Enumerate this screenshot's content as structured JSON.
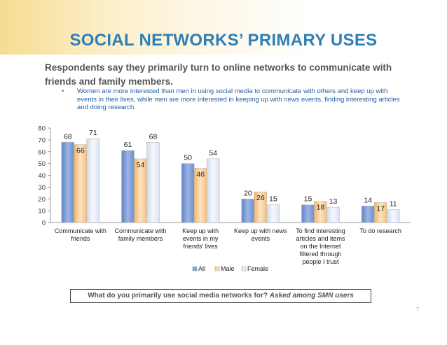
{
  "slide": {
    "title": "SOCIAL NETWORKS’ PRIMARY USES",
    "lead": "Respondents say they primarily turn to online networks to communicate with friends and family members.",
    "bullet": "Women are more interested than men in using social media to communicate with others and keep up with events in their lives, while men are more interested in keeping up with news events, finding interesting articles and doing research.",
    "footer_question": "What do you primarily use social media networks for?",
    "footer_note": "Asked among SMN users",
    "page_number": "7"
  },
  "chart_data": {
    "type": "bar",
    "categories": [
      [
        "Communicate with",
        "friends"
      ],
      [
        "Communicate with",
        "family members"
      ],
      [
        "Keep up with",
        "events in my",
        "friends' lives"
      ],
      [
        "Keep up with news",
        "events"
      ],
      [
        "To find interesting",
        "articles and items",
        "on the Internet",
        "filtered through",
        "people I trust"
      ],
      [
        "To do research"
      ]
    ],
    "series": [
      {
        "name": "All",
        "values": [
          68,
          61,
          50,
          20,
          15,
          14
        ],
        "color": "#7e9fd6"
      },
      {
        "name": "Male",
        "values": [
          66,
          54,
          46,
          26,
          18,
          17
        ],
        "color": "#f8c98e"
      },
      {
        "name": "Female",
        "values": [
          71,
          68,
          54,
          15,
          13,
          11
        ],
        "color": "#dfe6f5"
      }
    ],
    "ylim": [
      0,
      80
    ],
    "yticks": [
      0,
      10,
      20,
      30,
      40,
      50,
      60,
      70,
      80
    ],
    "grid": false,
    "legend": "bottom"
  }
}
